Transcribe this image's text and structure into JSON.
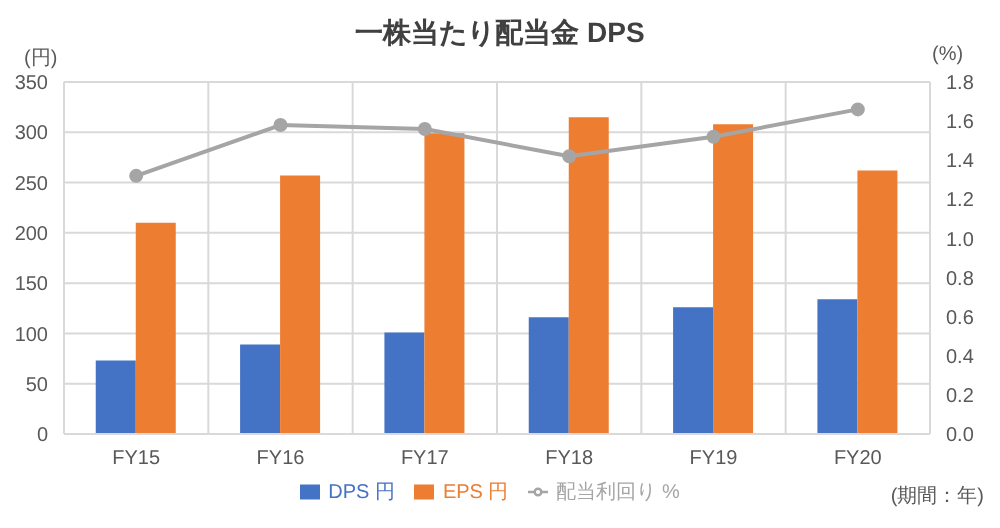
{
  "chart_data": {
    "type": "bar",
    "title": "一株当たり配当金 DPS",
    "ylabel": "(円)",
    "y2label": "(%)",
    "annotations": [
      "(期間：年)"
    ],
    "categories": [
      "FY15",
      "FY16",
      "FY17",
      "FY18",
      "FY19",
      "FY20"
    ],
    "series": [
      {
        "name": "DPS 円",
        "color": "#4472c4",
        "values": [
          73,
          89,
          101,
          116,
          126,
          134
        ]
      },
      {
        "name": "EPS 円",
        "color": "#ed7d31",
        "values": [
          210,
          257,
          299,
          315,
          308,
          262
        ]
      },
      {
        "name": "配当利回り %",
        "type": "line",
        "axis": "y2",
        "color": "#a5a5a5",
        "marker": "circle",
        "values": [
          1.32,
          1.58,
          1.56,
          1.42,
          1.52,
          1.66
        ]
      }
    ],
    "ylim": [
      0,
      350
    ],
    "yticks": [
      0,
      50,
      100,
      150,
      200,
      250,
      300,
      350
    ],
    "y2lim": [
      0,
      1.8
    ],
    "y2ticks": [
      {
        "value": 0,
        "label": "0.0"
      },
      0.2,
      0.4,
      0.6,
      0.8,
      {
        "value": 1,
        "label": "1.0"
      },
      1.2,
      1.4,
      1.6,
      1.8
    ],
    "grid": true,
    "legend": "bottom"
  }
}
